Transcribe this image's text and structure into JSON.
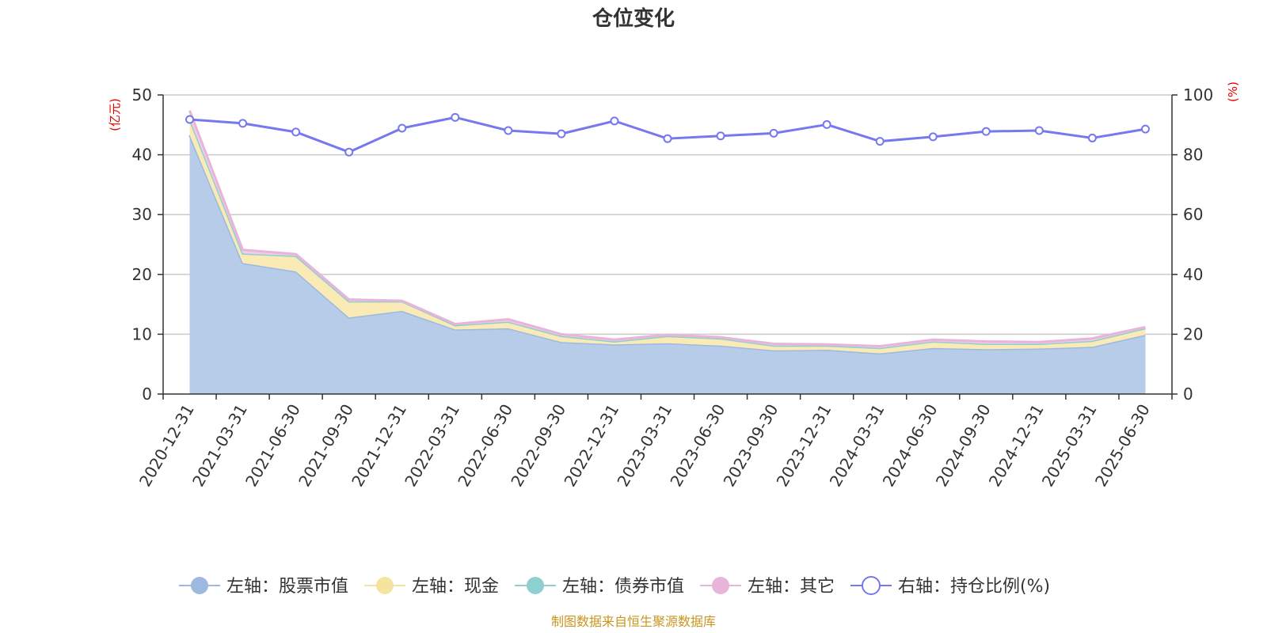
{
  "title": "仓位变化",
  "source": "制图数据来自恒生聚源数据库",
  "left_unit": "(亿元)",
  "right_unit": "(%)",
  "chart_data": {
    "type": "area",
    "title": "仓位变化",
    "x": [
      "2020-12-31",
      "2021-03-31",
      "2021-06-30",
      "2021-09-30",
      "2021-12-31",
      "2022-03-31",
      "2022-06-30",
      "2022-09-30",
      "2022-12-31",
      "2023-03-31",
      "2023-06-30",
      "2023-09-30",
      "2023-12-31",
      "2024-03-31",
      "2024-06-30",
      "2024-09-30",
      "2024-12-31",
      "2025-03-31",
      "2025-06-30"
    ],
    "left_axis": {
      "unit": "(亿元)",
      "ylim": [
        0,
        50
      ],
      "ticks": [
        "0",
        "10",
        "20",
        "30",
        "40",
        "50"
      ]
    },
    "right_axis": {
      "unit": "(%)",
      "ylim": [
        0,
        100
      ],
      "ticks": [
        "0",
        "20",
        "40",
        "60",
        "80",
        "100"
      ]
    },
    "series": [
      {
        "name": "左轴：股票市值",
        "axis": "left",
        "kind": "area",
        "color": "#9db9e0",
        "fill": "#b6cce9",
        "values": [
          43.3,
          21.9,
          20.5,
          12.8,
          13.9,
          10.8,
          11.0,
          8.7,
          8.3,
          8.5,
          8.1,
          7.3,
          7.4,
          6.8,
          7.7,
          7.5,
          7.6,
          7.9,
          9.9
        ]
      },
      {
        "name": "左轴：现金",
        "axis": "left",
        "kind": "area",
        "color": "#f5e4a0",
        "fill": "#faeab6",
        "values": [
          2.7,
          1.6,
          2.6,
          2.7,
          1.6,
          0.7,
          1.1,
          1.0,
          0.5,
          1.2,
          1.2,
          0.8,
          0.7,
          0.9,
          1.1,
          0.9,
          0.8,
          1.0,
          1.1
        ]
      },
      {
        "name": "左轴：债券市值",
        "axis": "left",
        "kind": "area",
        "color": "#8ecfcf",
        "fill": "#8ecfcf",
        "values": [
          0,
          0,
          0,
          0,
          0,
          0,
          0,
          0,
          0,
          0,
          0,
          0,
          0,
          0,
          0,
          0,
          0,
          0,
          0
        ]
      },
      {
        "name": "左轴：其它",
        "axis": "left",
        "kind": "area",
        "color": "#e8b4d9",
        "fill": "#f1cde6",
        "values": [
          1.4,
          0.6,
          0.3,
          0.3,
          0.1,
          0.2,
          0.4,
          0.3,
          0.3,
          0.2,
          0.2,
          0.3,
          0.2,
          0.3,
          0.3,
          0.4,
          0.3,
          0.4,
          0.2
        ]
      },
      {
        "name": "右轴：持仓比例(%)",
        "axis": "right",
        "kind": "line",
        "color": "#7578ee",
        "values": [
          91.8,
          90.5,
          87.6,
          80.9,
          88.9,
          92.5,
          88.1,
          87.0,
          91.3,
          85.4,
          86.3,
          87.2,
          90.1,
          84.5,
          86.0,
          87.8,
          88.1,
          85.6,
          88.6
        ]
      }
    ],
    "legend": {
      "position": "bottom",
      "items": [
        {
          "label": "左轴：股票市值",
          "icon": "filled-circle-icon",
          "color": "#9db9e0"
        },
        {
          "label": "左轴：现金",
          "icon": "filled-circle-icon",
          "color": "#f5e4a0"
        },
        {
          "label": "左轴：债券市值",
          "icon": "filled-circle-icon",
          "color": "#8ecfcf"
        },
        {
          "label": "左轴：其它",
          "icon": "filled-circle-icon",
          "color": "#e8b4d9"
        },
        {
          "label": "右轴：持仓比例(%)",
          "icon": "hollow-circle-icon",
          "color": "#7578ee"
        }
      ]
    },
    "grid": true
  }
}
